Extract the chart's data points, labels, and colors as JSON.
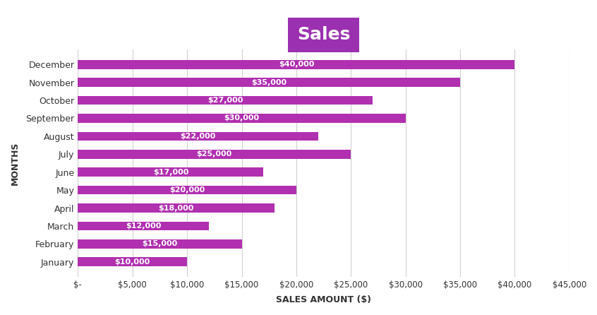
{
  "title": "Sales",
  "title_bg_color": "#9B30B0",
  "title_font_color": "#ffffff",
  "xlabel": "SALES AMOUNT ($)",
  "ylabel": "MONTHS",
  "bar_color": "#b030b0",
  "months": [
    "December",
    "November",
    "October",
    "September",
    "August",
    "July",
    "June",
    "May",
    "April",
    "March",
    "February",
    "January"
  ],
  "values": [
    40000,
    35000,
    27000,
    30000,
    22000,
    25000,
    17000,
    20000,
    18000,
    12000,
    15000,
    10000
  ],
  "xlim": [
    0,
    45000
  ],
  "xticks": [
    0,
    5000,
    10000,
    15000,
    20000,
    25000,
    30000,
    35000,
    40000,
    45000
  ],
  "xtick_labels": [
    "$-",
    "$5,000",
    "$10,000",
    "$15,000",
    "$20,000",
    "$25,000",
    "$30,000",
    "$35,000",
    "$40,000",
    "$45,000"
  ],
  "bg_color": "#ffffff",
  "grid_color": "#d0d0d0",
  "label_font_color": "#ffffff",
  "label_fontsize": 8,
  "figsize": [
    8.46,
    4.46
  ],
  "dpi": 100
}
